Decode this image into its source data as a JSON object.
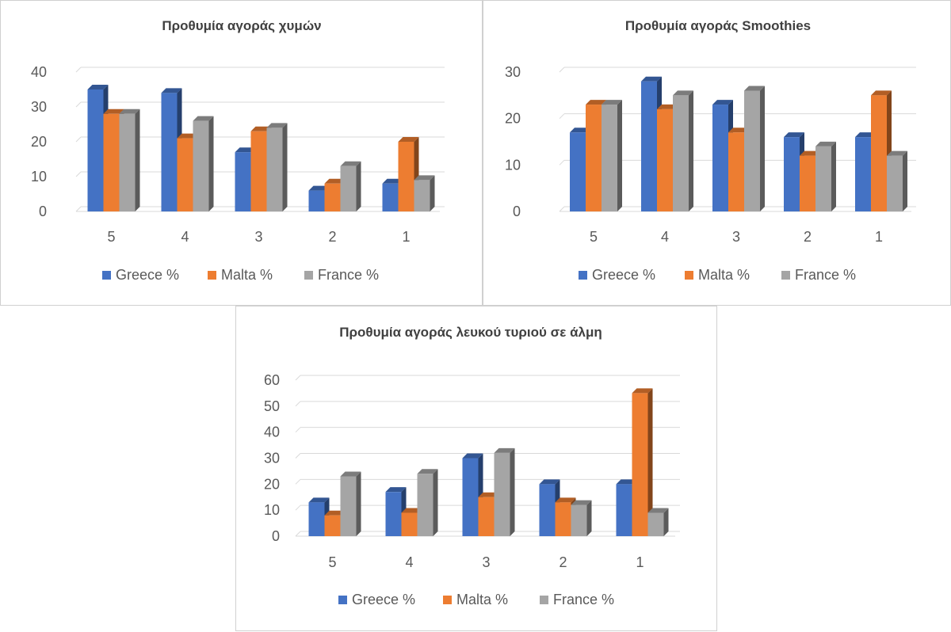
{
  "colors": {
    "greece": "#4472c4",
    "malta": "#ed7d31",
    "france": "#a5a5a5"
  },
  "chart_data": [
    {
      "type": "bar",
      "title": "Προθυμία αγοράς χυμών",
      "categories": [
        "5",
        "4",
        "3",
        "2",
        "1"
      ],
      "y_ticks": [
        "0",
        "10",
        "20",
        "30",
        "40"
      ],
      "ylim": [
        0,
        40
      ],
      "grid": true,
      "legend_position": "bottom",
      "series": [
        {
          "name": "Greece %",
          "values": [
            35,
            34,
            17,
            6,
            8
          ]
        },
        {
          "name": "Malta %",
          "values": [
            28,
            21,
            23,
            8,
            20
          ]
        },
        {
          "name": "France %",
          "values": [
            28,
            26,
            24,
            13,
            9
          ]
        }
      ]
    },
    {
      "type": "bar",
      "title": "Προθυμία αγοράς Smoothies",
      "categories": [
        "5",
        "4",
        "3",
        "2",
        "1"
      ],
      "y_ticks": [
        "0",
        "10",
        "20",
        "30"
      ],
      "ylim": [
        0,
        30
      ],
      "grid": true,
      "legend_position": "bottom",
      "series": [
        {
          "name": "Greece %",
          "values": [
            17,
            28,
            23,
            16,
            16
          ]
        },
        {
          "name": "Malta %",
          "values": [
            23,
            22,
            17,
            12,
            25
          ]
        },
        {
          "name": "France %",
          "values": [
            23,
            25,
            26,
            14,
            12
          ]
        }
      ]
    },
    {
      "type": "bar",
      "title": "Προθυμία αγοράς λευκού τυριού σε άλμη",
      "categories": [
        "5",
        "4",
        "3",
        "2",
        "1"
      ],
      "y_ticks": [
        "0",
        "10",
        "20",
        "30",
        "40",
        "50",
        "60"
      ],
      "ylim": [
        0,
        60
      ],
      "grid": true,
      "legend_position": "bottom",
      "series": [
        {
          "name": "Greece %",
          "values": [
            13,
            17,
            30,
            20,
            20
          ]
        },
        {
          "name": "Malta %",
          "values": [
            8,
            9,
            15,
            13,
            55
          ]
        },
        {
          "name": "France %",
          "values": [
            23,
            24,
            32,
            12,
            9
          ]
        }
      ]
    }
  ]
}
